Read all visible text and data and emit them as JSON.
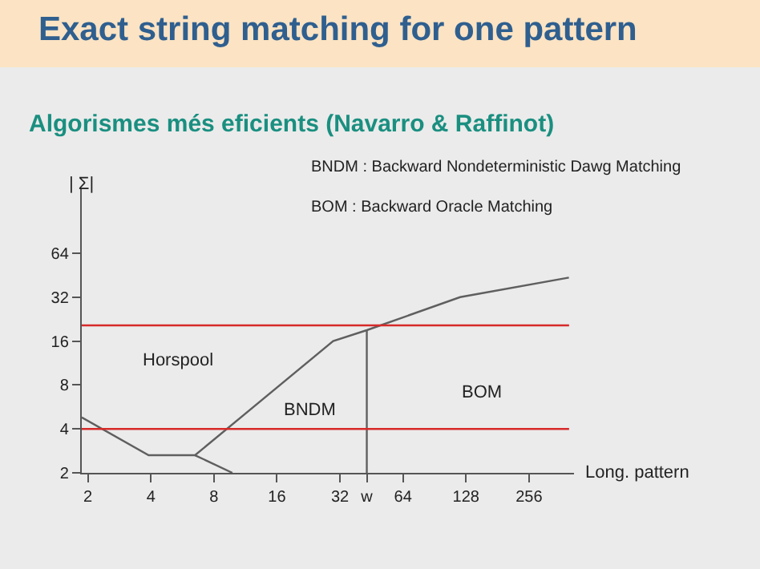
{
  "chart_data": {
    "type": "line",
    "title": "Exact string matching for one pattern",
    "subtitle": "Algorismes més eficients (Navarro & Raffinot)",
    "xlabel": "Long. pattern",
    "ylabel": "| Σ|",
    "log": "xy",
    "grid": false,
    "marker": "none",
    "line_style": "solid",
    "xlim": [
      1.87,
      420
    ],
    "ylim": [
      2,
      176
    ],
    "xticks": [
      2,
      4,
      8,
      16,
      32,
      {
        "value": 43,
        "label": "w"
      },
      64,
      128,
      256
    ],
    "yticks": [
      2,
      4,
      8,
      16,
      32,
      64
    ],
    "series": [
      {
        "color": "#5f5f5f",
        "x": [
          1.87,
          3.9,
          6.5,
          29.7,
          43,
          120,
          397
        ],
        "values": [
          4.8,
          2.64,
          2.64,
          16,
          19,
          32,
          43.6
        ]
      },
      {
        "color": "#5f5f5f",
        "x": [
          6.5,
          9.8
        ],
        "values": [
          2.64,
          2
        ]
      },
      {
        "color": "#5f5f5f",
        "x": [
          43,
          43
        ],
        "values": [
          2,
          19
        ]
      }
    ],
    "ref_lines": [
      {
        "axis": "y",
        "value": 20.5,
        "color": "#d62a2a"
      },
      {
        "axis": "y",
        "value": 4,
        "color": "#d62a2a"
      }
    ],
    "annotations": [
      "Horspool",
      "BNDM",
      "BOM",
      "BNDM : Backward Nondeterministic Dawg Matching",
      "BOM : Backward Oracle Matching"
    ]
  }
}
